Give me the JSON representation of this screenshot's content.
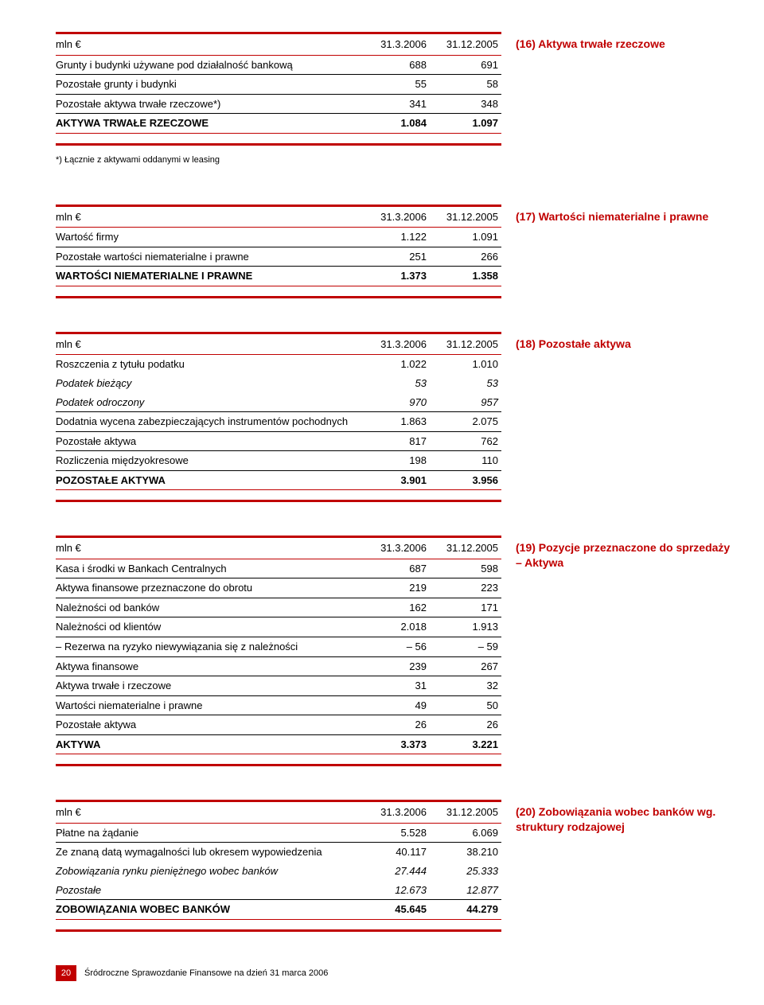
{
  "colors": {
    "accent": "#c00000",
    "text": "#000000",
    "bg": "#ffffff"
  },
  "typography": {
    "body_size_pt": 10,
    "side_size_pt": 11,
    "side_weight": "bold",
    "side_color": "#c00000"
  },
  "columns": {
    "col2": "31.3.2006",
    "col3": "31.12.2005"
  },
  "currency_header": "mln €",
  "t16": {
    "side": "(16) Aktywa trwałe rzeczowe",
    "rows": [
      {
        "label": "Grunty i budynki używane pod działalność bankową",
        "a": "688",
        "b": "691"
      },
      {
        "label": "Pozostałe grunty i budynki",
        "a": "55",
        "b": "58"
      },
      {
        "label": "Pozostałe aktywa trwałe rzeczowe*)",
        "a": "341",
        "b": "348"
      }
    ],
    "total": {
      "label": "AKTYWA TRWAŁE RZECZOWE",
      "a": "1.084",
      "b": "1.097"
    },
    "footnote": "*) Łącznie z aktywami oddanymi w leasing"
  },
  "t17": {
    "side": "(17) Wartości niematerialne i prawne",
    "rows": [
      {
        "label": "Wartość firmy",
        "a": "1.122",
        "b": "1.091"
      },
      {
        "label": "Pozostałe wartości niematerialne i prawne",
        "a": "251",
        "b": "266"
      }
    ],
    "total": {
      "label": "WARTOŚCI NIEMATERIALNE I PRAWNE",
      "a": "1.373",
      "b": "1.358"
    }
  },
  "t18": {
    "side": "(18) Pozostałe aktywa",
    "rows": [
      {
        "label": "Roszczenia z tytułu podatku",
        "a": "1.022",
        "b": "1.010",
        "nobottom": true
      },
      {
        "label": "Podatek bieżący",
        "a": "53",
        "b": "53",
        "italic": true,
        "nobottom": true
      },
      {
        "label": "Podatek odroczony",
        "a": "970",
        "b": "957",
        "italic": true
      },
      {
        "label": "Dodatnia wycena zabezpieczających instrumentów pochodnych",
        "a": "1.863",
        "b": "2.075"
      },
      {
        "label": "Pozostałe aktywa",
        "a": "817",
        "b": "762"
      },
      {
        "label": "Rozliczenia międzyokresowe",
        "a": "198",
        "b": "110"
      }
    ],
    "total": {
      "label": "POZOSTAŁE AKTYWA",
      "a": "3.901",
      "b": "3.956"
    }
  },
  "t19": {
    "side": "(19) Pozycje przeznaczone do sprzedaży – Aktywa",
    "rows": [
      {
        "label": "Kasa i środki w Bankach Centralnych",
        "a": "687",
        "b": "598"
      },
      {
        "label": "Aktywa finansowe przeznaczone do obrotu",
        "a": "219",
        "b": "223"
      },
      {
        "label": "Należności od banków",
        "a": "162",
        "b": "171"
      },
      {
        "label": "Należności od klientów",
        "a": "2.018",
        "b": "1.913"
      },
      {
        "label": "– Rezerwa na ryzyko niewywiązania się z należności",
        "a": "– 56",
        "b": "– 59"
      },
      {
        "label": "Aktywa finansowe",
        "a": "239",
        "b": "267"
      },
      {
        "label": "Aktywa trwałe i rzeczowe",
        "a": "31",
        "b": "32"
      },
      {
        "label": "Wartości niematerialne i prawne",
        "a": "49",
        "b": "50"
      },
      {
        "label": "Pozostałe aktywa",
        "a": "26",
        "b": "26"
      }
    ],
    "total": {
      "label": "AKTYWA",
      "a": "3.373",
      "b": "3.221"
    }
  },
  "t20": {
    "side": "(20) Zobowiązania wobec banków wg. struktury rodzajowej",
    "rows": [
      {
        "label": "Płatne na żądanie",
        "a": "5.528",
        "b": "6.069"
      },
      {
        "label": "Ze znaną datą wymagalności lub okresem wypowiedzenia",
        "a": "40.117",
        "b": "38.210",
        "nobottom": true
      },
      {
        "label": "Zobowiązania rynku pieniężnego wobec banków",
        "a": "27.444",
        "b": "25.333",
        "italic": true,
        "nobottom": true
      },
      {
        "label": "Pozostałe",
        "a": "12.673",
        "b": "12.877",
        "italic": true
      }
    ],
    "total": {
      "label": "ZOBOWIĄZANIA WOBEC BANKÓW",
      "a": "45.645",
      "b": "44.279"
    }
  },
  "footer": {
    "page": "20",
    "text": "Śródroczne Sprawozdanie Finansowe na dzień 31 marca 2006"
  }
}
